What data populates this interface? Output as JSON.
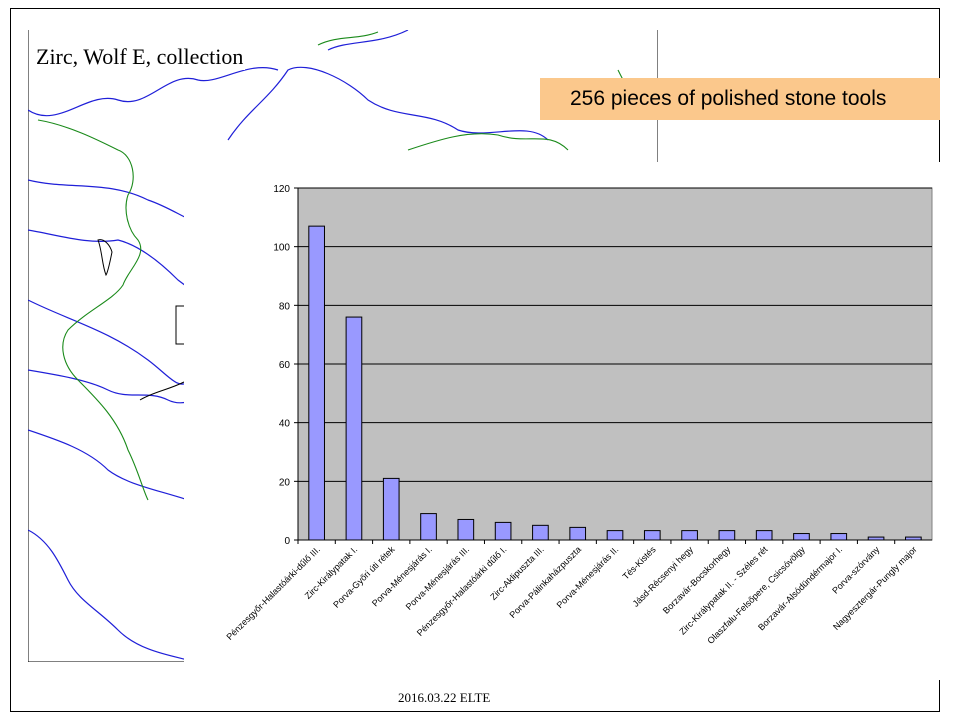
{
  "slide": {
    "map_title": "Zirc, Wolf E, collection",
    "callout": "256 pieces of polished stone tools",
    "footer": "2016.03.22  ELTE"
  },
  "colors": {
    "bar_fill": "#9999ff",
    "plot_background": "#c0c0c0",
    "callout_background": "#fbc88c",
    "river": "#1f1fd8",
    "border": "#1a8a1a"
  },
  "chart_data": {
    "type": "bar",
    "categories": [
      "Pénzesgyőr-Halastóárki-dűlő III.",
      "Zirc-Királypatak I.",
      "Porva-Győri úti rétek",
      "Porva-Ménesjárás I.",
      "Porva-Ménesjárás III.",
      "Pénzesgyőr-Halastóárki dűlő I.",
      "Zirc-Aklipuszta III.",
      "Porva-Pálinkaházpuszta",
      "Porva-Ménesjárás II.",
      "Tés-Kistés",
      "Jásd-Récsenyi hegy",
      "Borzavár-Bocskorhegy",
      "Zirc-Királypatak II. - Széles rét",
      "Olaszfalu-Felsőpere, Csicsóvölgy",
      "Borzavár-Alsódündérmajor I.",
      "Porva-szórvány",
      "Nagyesztergár-Pungly major"
    ],
    "values": [
      107,
      76,
      21,
      9,
      7,
      6,
      5,
      4.3,
      3.2,
      3.2,
      3.2,
      3.2,
      3.2,
      2.2,
      2.2,
      1,
      1
    ],
    "ylim": [
      0,
      120
    ],
    "yticks": [
      0,
      20,
      40,
      60,
      80,
      100,
      120
    ],
    "grid": true,
    "title": "",
    "xlabel": "",
    "ylabel": ""
  }
}
